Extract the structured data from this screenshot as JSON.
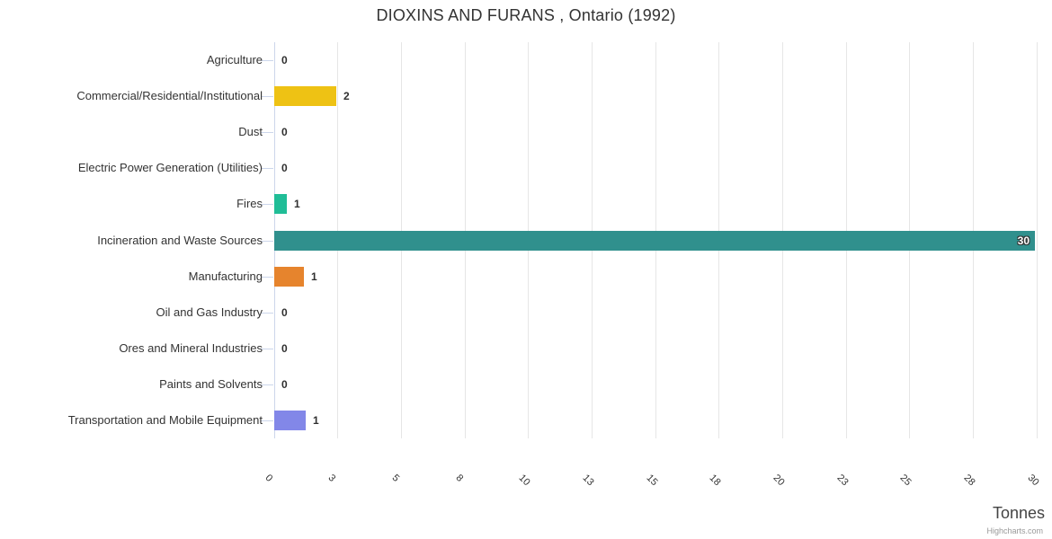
{
  "chart_data": {
    "type": "bar",
    "title": "DIOXINS AND FURANS , Ontario (1992)",
    "xlabel": "Tonnes",
    "ylabel": "",
    "categories": [
      "Agriculture",
      "Commercial/Residential/Institutional",
      "Dust",
      "Electric Power Generation (Utilities)",
      "Fires",
      "Incineration and Waste Sources",
      "Manufacturing",
      "Oil and Gas Industry",
      "Ores and Mineral Industries",
      "Paints and Solvents",
      "Transportation and Mobile Equipment"
    ],
    "values": [
      0,
      2,
      0,
      0,
      1,
      30,
      1,
      0,
      0,
      0,
      1
    ],
    "bar_lengths_units_est": [
      0,
      2.44,
      0,
      0,
      0.5,
      30,
      1.17,
      0,
      0,
      0,
      1.24
    ],
    "bar_colors": [
      "",
      "#EEC214",
      "",
      "",
      "#20BD97",
      "#30908D",
      "#E6842D",
      "",
      "",
      "",
      "#8287E8"
    ],
    "value_label_inside": [
      false,
      false,
      false,
      false,
      false,
      true,
      false,
      false,
      false,
      false,
      false
    ],
    "axis": {
      "min": 0,
      "max": 30,
      "tick_interval": 2.5,
      "tick_labels": [
        "0",
        "3",
        "5",
        "8",
        "10",
        "13",
        "15",
        "18",
        "20",
        "23",
        "25",
        "28",
        "30"
      ]
    },
    "grid": true,
    "legend_position": "none"
  },
  "credits": {
    "label": "Highcharts.com"
  },
  "colors": {
    "background": "#ffffff",
    "grid": "#e6e6e6",
    "axis_line": "#ccd6eb",
    "title_text": "#333333",
    "category_text": "#333333",
    "value_label_text": "#2f2f2f",
    "inside_label_text": "#ffffff",
    "axis_title_text": "#444444",
    "credits_text": "#999999"
  }
}
